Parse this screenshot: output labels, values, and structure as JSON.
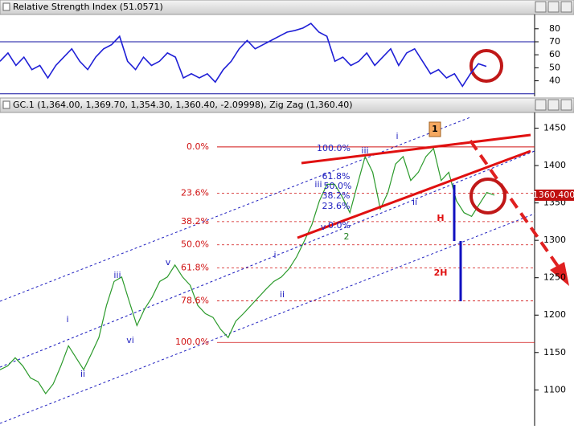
{
  "chart_data": [
    {
      "type": "line",
      "title": "Relative Strength Index (51.0571)",
      "color": "#1f1fd6",
      "values": [
        55.0,
        61.4,
        51.8,
        58.2,
        48.6,
        51.8,
        42.2,
        51.8,
        58.2,
        64.6,
        55.0,
        48.6,
        58.2,
        64.6,
        67.8,
        74.2,
        55.0,
        48.6,
        58.2,
        51.8,
        55.0,
        61.4,
        58.2,
        42.2,
        45.4,
        42.2,
        45.4,
        39.0,
        48.6,
        55.0,
        64.6,
        71.0,
        64.6,
        67.8,
        71.0,
        74.2,
        77.4,
        78.7,
        80.6,
        84.1,
        77.4,
        74.2,
        55.0,
        58.2,
        51.8,
        55.0,
        61.4,
        51.8,
        58.2,
        64.6,
        51.8,
        61.4,
        64.6,
        55.0,
        45.4,
        48.6,
        42.2,
        45.4,
        35.8,
        45.4,
        53.1,
        51.06
      ],
      "ylim": [
        28,
        91
      ],
      "yticks": [
        40,
        50,
        60,
        70,
        80
      ],
      "levels": [
        30,
        70
      ]
    },
    {
      "type": "line",
      "title": "GC.1 (1,364.00, 1,369.70, 1,354.30, 1,360.40, -2.09998), Zig Zag (1,360.40)",
      "color": "#2b9a2b",
      "values": [
        1127,
        1132,
        1143,
        1132,
        1116,
        1111,
        1095,
        1108,
        1132,
        1159,
        1143,
        1127,
        1148,
        1170,
        1213,
        1245,
        1251,
        1218,
        1186,
        1208,
        1224,
        1245,
        1251,
        1267,
        1251,
        1240,
        1213,
        1202,
        1197,
        1181,
        1170,
        1192,
        1202,
        1213,
        1224,
        1235,
        1245,
        1251,
        1262,
        1278,
        1299,
        1321,
        1353,
        1375,
        1375,
        1358,
        1337,
        1375,
        1412,
        1391,
        1342,
        1364,
        1402,
        1412,
        1380,
        1391,
        1412,
        1423,
        1380,
        1391,
        1353,
        1337,
        1332,
        1348,
        1364,
        1360.4
      ],
      "ylim": [
        1052,
        1471
      ],
      "yticks": [
        1100,
        1150,
        1200,
        1250,
        1300,
        1350,
        1400,
        1450
      ],
      "price_marker": {
        "value": 1360.4,
        "label": "1360.400"
      },
      "fib_levels": [
        {
          "value": 1425,
          "label": "0.0%"
        },
        {
          "value": 1363,
          "label": "23.6%"
        },
        {
          "value": 1325,
          "label": "38.2%"
        },
        {
          "value": 1294,
          "label": "50.0%"
        },
        {
          "value": 1263,
          "label": "61.8%"
        },
        {
          "value": 1219,
          "label": "78.6%"
        },
        {
          "value": 1163.5,
          "label": "100.0%"
        }
      ],
      "annotations": [
        "i",
        "ii",
        "iii",
        "vi",
        "v",
        "i",
        "ii",
        "iii",
        "v",
        "2",
        "iii",
        "i",
        "ii",
        "1",
        "H",
        "2H",
        "100.0%",
        "61.8%",
        "50.0%",
        "38.2%",
        "23.6%",
        "0.0%"
      ]
    }
  ]
}
